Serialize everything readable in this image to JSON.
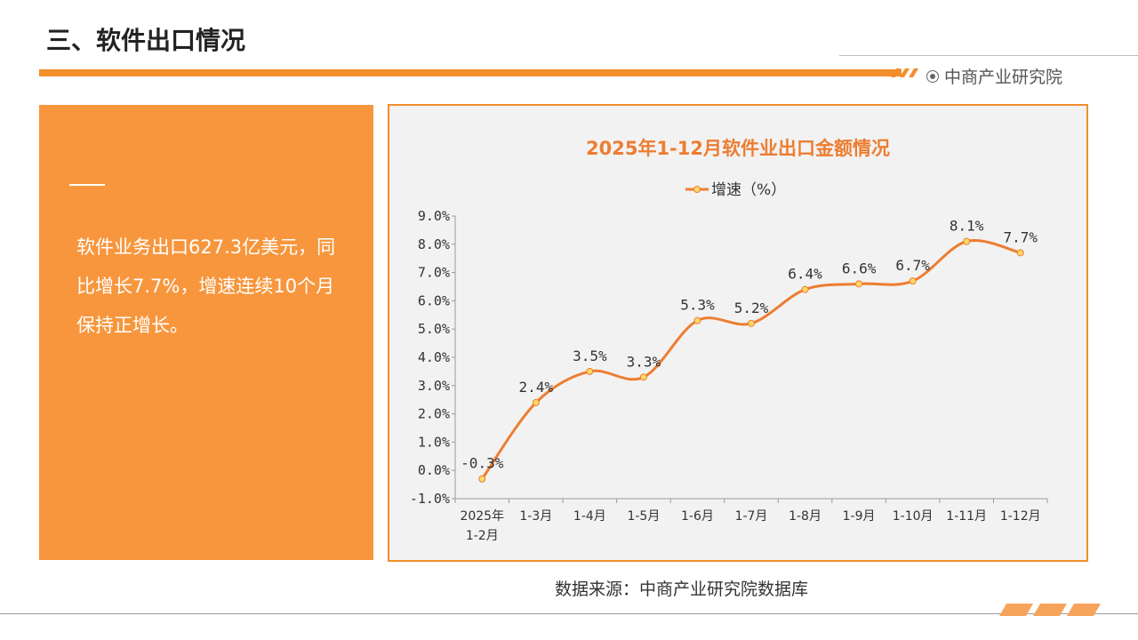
{
  "header": {
    "title": "三、软件出口情况",
    "brand": "中商产业研究院"
  },
  "summary": {
    "text": "软件业务出口627.3亿美元，同比增长7.7%，增速连续10个月保持正增长。"
  },
  "source": "数据来源：中商产业研究院数据库",
  "colors": {
    "accent": "#f28e2b",
    "panel": "#f7963d",
    "line": "#ed7d31",
    "marker": "#ffd966",
    "chart_bg": "#f2f2f2"
  },
  "chart_data": {
    "type": "line",
    "title": "2025年1-12月软件业出口金额情况",
    "categories": [
      [
        "2025年",
        "1-2月"
      ],
      [
        "1-3月"
      ],
      [
        "1-4月"
      ],
      [
        "1-5月"
      ],
      [
        "1-6月"
      ],
      [
        "1-7月"
      ],
      [
        "1-8月"
      ],
      [
        "1-9月"
      ],
      [
        "1-10月"
      ],
      [
        "1-11月"
      ],
      [
        "1-12月"
      ]
    ],
    "series": [
      {
        "name": "增速（%）",
        "values": [
          -0.3,
          2.4,
          3.5,
          3.3,
          5.3,
          5.2,
          6.4,
          6.6,
          6.7,
          8.1,
          7.7
        ],
        "labels": [
          "-0.3%",
          "2.4%",
          "3.5%",
          "3.3%",
          "5.3%",
          "5.2%",
          "6.4%",
          "6.6%",
          "6.7%",
          "8.1%",
          "7.7%"
        ]
      }
    ],
    "y_ticks": [
      "-1.0%",
      "0.0%",
      "1.0%",
      "2.0%",
      "3.0%",
      "4.0%",
      "5.0%",
      "6.0%",
      "7.0%",
      "8.0%",
      "9.0%"
    ],
    "ylim": [
      -1,
      9
    ],
    "smooth": true,
    "legend_position": "top-center"
  }
}
